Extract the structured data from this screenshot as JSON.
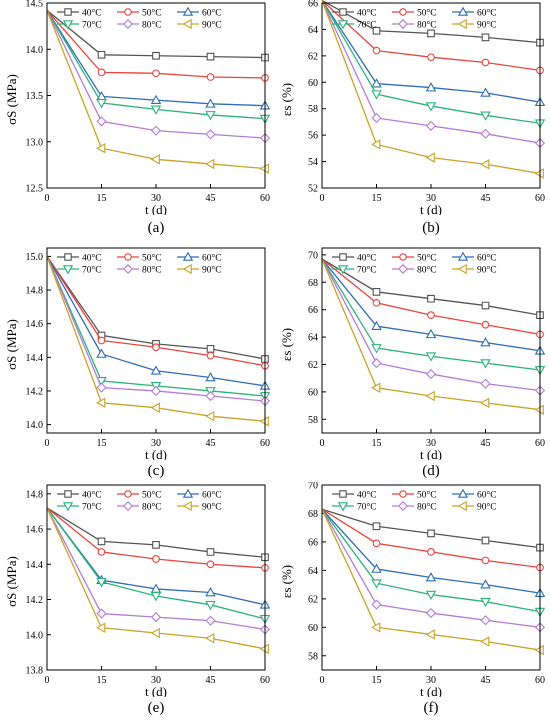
{
  "chart_data": [
    {
      "type": "line",
      "panel": "(a)",
      "xlabel": "t (d)",
      "ylabel": "σS (MPa)",
      "xlim": [
        0,
        60
      ],
      "ylim": [
        12.5,
        14.5
      ],
      "xticks": [
        "0",
        "15",
        "30",
        "45",
        "60"
      ],
      "yticks": [
        "12.5",
        "13.0",
        "13.5",
        "14.0",
        "14.5"
      ],
      "x": [
        0,
        15,
        30,
        45,
        60
      ],
      "legend": "top",
      "series": [
        {
          "name": "40°C",
          "color": "#555555",
          "marker": "square",
          "values": [
            14.42,
            13.94,
            13.93,
            13.92,
            13.91
          ]
        },
        {
          "name": "50°C",
          "color": "#e8453c",
          "marker": "circle",
          "values": [
            14.42,
            13.75,
            13.74,
            13.7,
            13.69
          ]
        },
        {
          "name": "60°C",
          "color": "#2f6db5",
          "marker": "triangle-up",
          "values": [
            14.42,
            13.49,
            13.45,
            13.41,
            13.39
          ]
        },
        {
          "name": "70°C",
          "color": "#2bb37a",
          "marker": "triangle-down",
          "values": [
            14.42,
            13.42,
            13.35,
            13.29,
            13.25
          ]
        },
        {
          "name": "80°C",
          "color": "#b57ad8",
          "marker": "diamond",
          "values": [
            14.42,
            13.22,
            13.12,
            13.08,
            13.04
          ]
        },
        {
          "name": "90°C",
          "color": "#c9a227",
          "marker": "triangle-left",
          "values": [
            14.42,
            12.93,
            12.81,
            12.76,
            12.71
          ]
        }
      ]
    },
    {
      "type": "line",
      "panel": "(b)",
      "xlabel": "t (d)",
      "ylabel": "εs (%)",
      "xlim": [
        0,
        60
      ],
      "ylim": [
        52,
        66
      ],
      "xticks": [
        "0",
        "15",
        "30",
        "45",
        "60"
      ],
      "yticks": [
        "52",
        "54",
        "56",
        "58",
        "60",
        "62",
        "64",
        "66"
      ],
      "x": [
        0,
        15,
        30,
        45,
        60
      ],
      "legend": "top",
      "series": [
        {
          "name": "40°C",
          "color": "#555555",
          "marker": "square",
          "values": [
            66.2,
            63.9,
            63.7,
            63.4,
            63.0
          ]
        },
        {
          "name": "50°C",
          "color": "#e8453c",
          "marker": "circle",
          "values": [
            66.2,
            62.4,
            61.9,
            61.5,
            60.9
          ]
        },
        {
          "name": "60°C",
          "color": "#2f6db5",
          "marker": "triangle-up",
          "values": [
            66.2,
            59.9,
            59.6,
            59.2,
            58.5
          ]
        },
        {
          "name": "70°C",
          "color": "#2bb37a",
          "marker": "triangle-down",
          "values": [
            66.2,
            59.1,
            58.2,
            57.5,
            56.9
          ]
        },
        {
          "name": "80°C",
          "color": "#b57ad8",
          "marker": "diamond",
          "values": [
            66.2,
            57.3,
            56.7,
            56.1,
            55.4
          ]
        },
        {
          "name": "90°C",
          "color": "#c9a227",
          "marker": "triangle-left",
          "values": [
            66.2,
            55.3,
            54.3,
            53.8,
            53.1
          ]
        }
      ]
    },
    {
      "type": "line",
      "panel": "(c)",
      "xlabel": "t (d)",
      "ylabel": "σS (MPa)",
      "xlim": [
        0,
        60
      ],
      "ylim": [
        13.95,
        15.05
      ],
      "xticks": [
        "0",
        "15",
        "30",
        "45",
        "60"
      ],
      "yticks": [
        "14.0",
        "14.2",
        "14.4",
        "14.6",
        "14.8",
        "15.0"
      ],
      "x": [
        0,
        15,
        30,
        45,
        60
      ],
      "legend": "top",
      "series": [
        {
          "name": "40°C",
          "color": "#555555",
          "marker": "square",
          "values": [
            15.0,
            14.53,
            14.48,
            14.45,
            14.39
          ]
        },
        {
          "name": "50°C",
          "color": "#e8453c",
          "marker": "circle",
          "values": [
            15.0,
            14.5,
            14.46,
            14.41,
            14.35
          ]
        },
        {
          "name": "60°C",
          "color": "#2f6db5",
          "marker": "triangle-up",
          "values": [
            15.0,
            14.42,
            14.32,
            14.28,
            14.23
          ]
        },
        {
          "name": "70°C",
          "color": "#2bb37a",
          "marker": "triangle-down",
          "values": [
            15.0,
            14.26,
            14.23,
            14.2,
            14.17
          ]
        },
        {
          "name": "80°C",
          "color": "#b57ad8",
          "marker": "diamond",
          "values": [
            15.0,
            14.22,
            14.2,
            14.17,
            14.14
          ]
        },
        {
          "name": "90°C",
          "color": "#c9a227",
          "marker": "triangle-left",
          "values": [
            15.0,
            14.13,
            14.1,
            14.05,
            14.02
          ]
        }
      ]
    },
    {
      "type": "line",
      "panel": "(d)",
      "xlabel": "t (d)",
      "ylabel": "εs (%)",
      "xlim": [
        0,
        60
      ],
      "ylim": [
        57,
        70.5
      ],
      "xticks": [
        "0",
        "15",
        "30",
        "45",
        "60"
      ],
      "yticks": [
        "58",
        "60",
        "62",
        "64",
        "66",
        "68",
        "70"
      ],
      "x": [
        0,
        15,
        30,
        45,
        60
      ],
      "legend": "top",
      "series": [
        {
          "name": "40°C",
          "color": "#555555",
          "marker": "square",
          "values": [
            69.7,
            67.3,
            66.8,
            66.3,
            65.6
          ]
        },
        {
          "name": "50°C",
          "color": "#e8453c",
          "marker": "circle",
          "values": [
            69.7,
            66.5,
            65.6,
            64.9,
            64.2
          ]
        },
        {
          "name": "60°C",
          "color": "#2f6db5",
          "marker": "triangle-up",
          "values": [
            69.7,
            64.8,
            64.2,
            63.6,
            63.0
          ]
        },
        {
          "name": "70°C",
          "color": "#2bb37a",
          "marker": "triangle-down",
          "values": [
            69.7,
            63.2,
            62.6,
            62.1,
            61.6
          ]
        },
        {
          "name": "80°C",
          "color": "#b57ad8",
          "marker": "diamond",
          "values": [
            69.7,
            62.1,
            61.3,
            60.6,
            60.1
          ]
        },
        {
          "name": "90°C",
          "color": "#c9a227",
          "marker": "triangle-left",
          "values": [
            69.7,
            60.3,
            59.7,
            59.2,
            58.7
          ]
        }
      ]
    },
    {
      "type": "line",
      "panel": "(e)",
      "xlabel": "t (d)",
      "ylabel": "σS (MPa)",
      "xlim": [
        0,
        60
      ],
      "ylim": [
        13.8,
        14.85
      ],
      "xticks": [
        "0",
        "15",
        "30",
        "45",
        "60"
      ],
      "yticks": [
        "13.8",
        "14.0",
        "14.2",
        "14.4",
        "14.6",
        "14.8"
      ],
      "x": [
        0,
        15,
        30,
        45,
        60
      ],
      "legend": "top",
      "series": [
        {
          "name": "40°C",
          "color": "#555555",
          "marker": "square",
          "values": [
            14.72,
            14.53,
            14.51,
            14.47,
            14.44
          ]
        },
        {
          "name": "50°C",
          "color": "#e8453c",
          "marker": "circle",
          "values": [
            14.72,
            14.47,
            14.43,
            14.4,
            14.38
          ]
        },
        {
          "name": "60°C",
          "color": "#2f6db5",
          "marker": "triangle-up",
          "values": [
            14.72,
            14.31,
            14.26,
            14.24,
            14.17
          ]
        },
        {
          "name": "70°C",
          "color": "#2bb37a",
          "marker": "triangle-down",
          "values": [
            14.72,
            14.3,
            14.22,
            14.17,
            14.09
          ]
        },
        {
          "name": "80°C",
          "color": "#b57ad8",
          "marker": "diamond",
          "values": [
            14.72,
            14.12,
            14.1,
            14.08,
            14.03
          ]
        },
        {
          "name": "90°C",
          "color": "#c9a227",
          "marker": "triangle-left",
          "values": [
            14.72,
            14.04,
            14.01,
            13.98,
            13.92
          ]
        }
      ]
    },
    {
      "type": "line",
      "panel": "(f)",
      "xlabel": "t (d)",
      "ylabel": "εs (%)",
      "xlim": [
        0,
        60
      ],
      "ylim": [
        57,
        70
      ],
      "xticks": [
        "0",
        "15",
        "30",
        "45",
        "60"
      ],
      "yticks": [
        "58",
        "60",
        "62",
        "64",
        "66",
        "68",
        "70"
      ],
      "x": [
        0,
        15,
        30,
        45,
        60
      ],
      "legend": "top",
      "series": [
        {
          "name": "40°C",
          "color": "#555555",
          "marker": "square",
          "values": [
            68.3,
            67.1,
            66.6,
            66.1,
            65.6
          ]
        },
        {
          "name": "50°C",
          "color": "#e8453c",
          "marker": "circle",
          "values": [
            68.3,
            65.9,
            65.3,
            64.7,
            64.2
          ]
        },
        {
          "name": "60°C",
          "color": "#2f6db5",
          "marker": "triangle-up",
          "values": [
            68.3,
            64.1,
            63.5,
            63.0,
            62.4
          ]
        },
        {
          "name": "70°C",
          "color": "#2bb37a",
          "marker": "triangle-down",
          "values": [
            68.3,
            63.1,
            62.3,
            61.8,
            61.1
          ]
        },
        {
          "name": "80°C",
          "color": "#b57ad8",
          "marker": "diamond",
          "values": [
            68.3,
            61.6,
            61.0,
            60.5,
            60.0
          ]
        },
        {
          "name": "90°C",
          "color": "#c9a227",
          "marker": "triangle-left",
          "values": [
            68.3,
            60.0,
            59.5,
            59.0,
            58.4
          ]
        }
      ]
    }
  ]
}
